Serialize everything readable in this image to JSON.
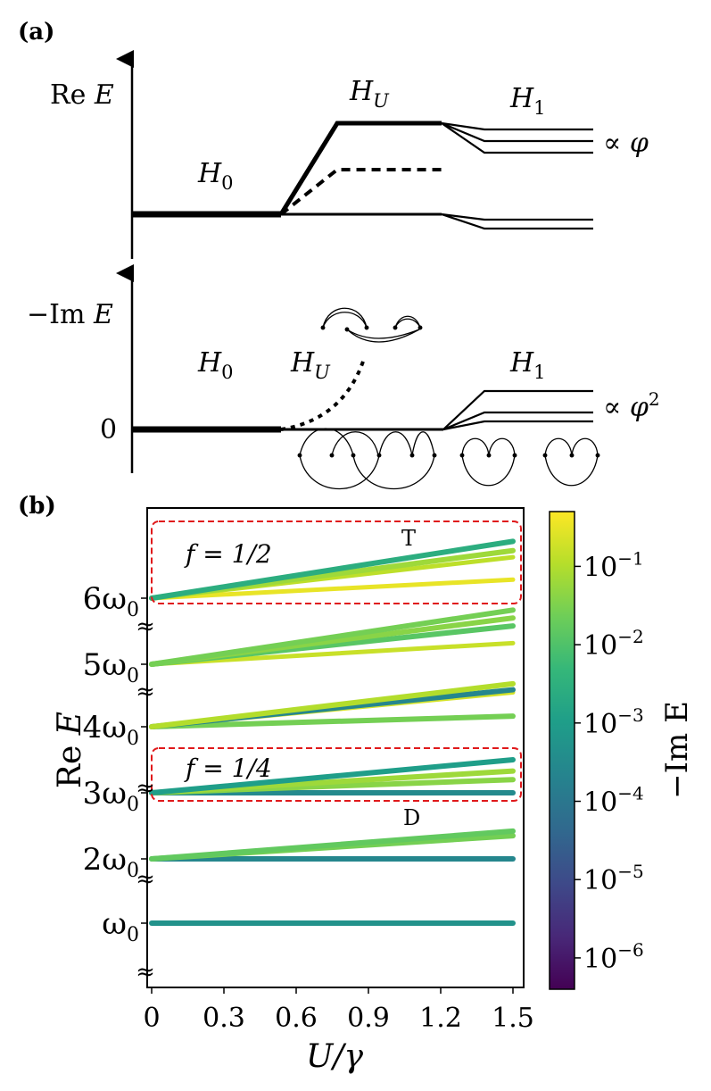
{
  "panel_a": {
    "label": "(a)",
    "top": {
      "ylabel_re": "Re",
      "ylabel_var": "E",
      "stage_h0": "H",
      "stage_h0_sub": "0",
      "stage_hu": "H",
      "stage_hu_sub": "U",
      "stage_h1": "H",
      "stage_h1_sub": "1",
      "prop_sym": "∝",
      "prop_var": "φ"
    },
    "bottom": {
      "ylabel_minus": "−Im",
      "ylabel_var": "E",
      "zero_label": "0",
      "stage_h0": "H",
      "stage_h0_sub": "0",
      "stage_hu": "H",
      "stage_hu_sub": "U",
      "stage_h1": "H",
      "stage_h1_sub": "1",
      "prop_sym": "∝",
      "prop_var": "φ",
      "prop_exp": "2"
    }
  },
  "panel_b": {
    "label": "(b)",
    "xlabel": "U/γ",
    "ylabel_re": "Re",
    "ylabel_var": "E",
    "box_top_label": "f = 1/2",
    "box_mid_label": "f = 1/4",
    "tag_t": "T",
    "tag_d": "D",
    "break_glyph": "≈",
    "colorbar_label": "−Im E",
    "colors": {
      "box": "#e0191b",
      "viridis_low": "#440154",
      "viridis_high": "#fde725"
    }
  },
  "chart_data": {
    "type": "line",
    "title": "",
    "xlabel": "U/γ",
    "ylabel": "Re E",
    "xlim": [
      0,
      1.5
    ],
    "x_ticks": [
      0,
      0.3,
      0.6,
      0.9,
      1.2,
      1.5
    ],
    "x_tick_labels": [
      "0",
      "0.3",
      "0.6",
      "0.9",
      "1.2",
      "1.5"
    ],
    "y_tick_labels": [
      "ω0",
      "2ω0",
      "3ω0",
      "4ω0",
      "5ω0",
      "6ω0"
    ],
    "y_tick_values": [
      1,
      2,
      3,
      4,
      5,
      6
    ],
    "colorbar": {
      "label": "−Im E",
      "scale": "log",
      "tick_exponents": [
        -1,
        -2,
        -3,
        -4,
        -5,
        -6
      ],
      "tick_labels": [
        "10−1",
        "10−2",
        "10−3",
        "10−4",
        "10−5",
        "10−6"
      ]
    },
    "series": [
      {
        "level": 1,
        "end": 1.0,
        "logc": -3.3
      },
      {
        "level": 2,
        "end": 2.0,
        "logc": -3.6
      },
      {
        "level": 2,
        "end": 2.35,
        "logc": -1.6
      },
      {
        "level": 2,
        "end": 2.42,
        "logc": -1.8
      },
      {
        "level": 3,
        "end": 3.0,
        "logc": -3.5
      },
      {
        "level": 3,
        "end": 3.2,
        "logc": -1.4
      },
      {
        "level": 3,
        "end": 3.33,
        "logc": -1.2
      },
      {
        "level": 3,
        "end": 3.5,
        "logc": -3.0
      },
      {
        "level": 4,
        "end": 4.16,
        "logc": -1.6
      },
      {
        "level": 4,
        "end": 4.52,
        "logc": -0.7
      },
      {
        "level": 4,
        "end": 4.56,
        "logc": -3.6
      },
      {
        "level": 4,
        "end": 4.65,
        "logc": -1.0
      },
      {
        "level": 5,
        "end": 5.32,
        "logc": -0.8
      },
      {
        "level": 5,
        "end": 5.58,
        "logc": -1.9
      },
      {
        "level": 5,
        "end": 5.7,
        "logc": -1.4
      },
      {
        "level": 5,
        "end": 5.82,
        "logc": -1.6
      },
      {
        "level": 6,
        "end": 6.28,
        "logc": -0.5
      },
      {
        "level": 6,
        "end": 6.62,
        "logc": -0.9
      },
      {
        "level": 6,
        "end": 6.72,
        "logc": -1.2
      },
      {
        "level": 6,
        "end": 6.86,
        "logc": -2.6
      }
    ]
  }
}
